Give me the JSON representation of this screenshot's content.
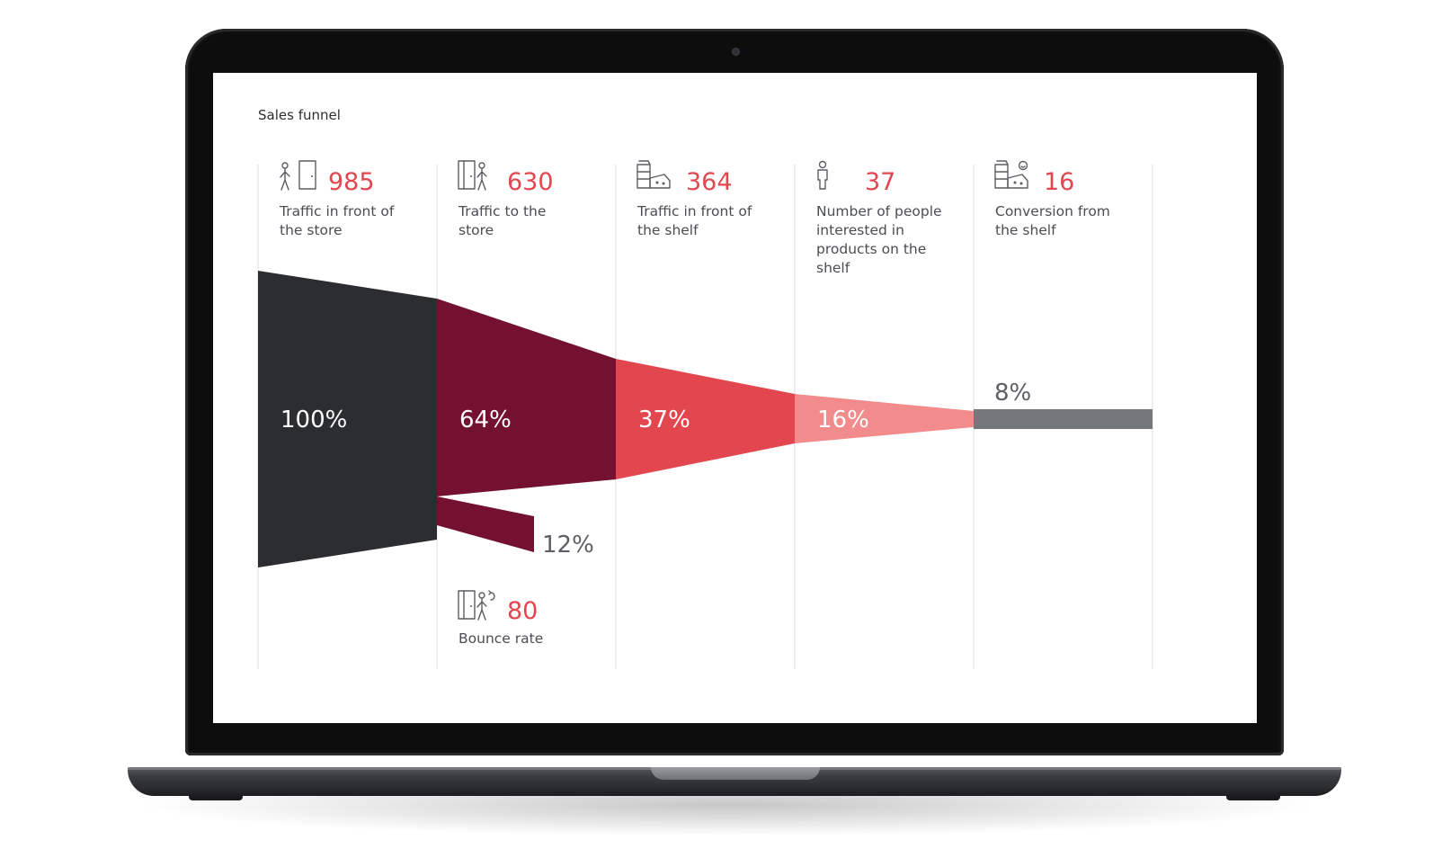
{
  "chart_data": {
    "type": "funnel",
    "title": "Sales funnel",
    "stages": [
      {
        "count": "985",
        "label_lines": [
          "Traffic in front of",
          "the store"
        ],
        "percent_label": "100%",
        "percent": 100,
        "icon": "pedestrian-at-door-icon",
        "color": "#2b2d30"
      },
      {
        "count": "630",
        "label_lines": [
          "Traffic to the",
          "store"
        ],
        "percent_label": "64%",
        "percent": 64,
        "icon": "person-entering-store-icon",
        "color": "#741130"
      },
      {
        "count": "364",
        "label_lines": [
          "Traffic in front of",
          "the shelf"
        ],
        "percent_label": "37%",
        "percent": 37,
        "icon": "shelf-products-icon",
        "color": "#e2464f"
      },
      {
        "count": "37",
        "label_lines": [
          "Number of people",
          "interested in",
          "products on the",
          "shelf"
        ],
        "percent_label": "16%",
        "percent": 16,
        "icon": "person-icon",
        "color": "#f28b8b"
      },
      {
        "count": "16",
        "label_lines": [
          "Conversion from",
          "the shelf"
        ],
        "percent_label": "8%",
        "percent": 8,
        "icon": "smiling-shelf-products-icon",
        "color": "#75787b"
      }
    ],
    "bounce": {
      "count": "80",
      "label": "Bounce rate",
      "percent_label": "12%",
      "percent": 12,
      "icon": "person-leaving-store-icon",
      "color": "#741130"
    },
    "colors": {
      "count_text": "#e2464f",
      "label_text": "#4a4d51",
      "divider": "#dcdcdc"
    }
  }
}
